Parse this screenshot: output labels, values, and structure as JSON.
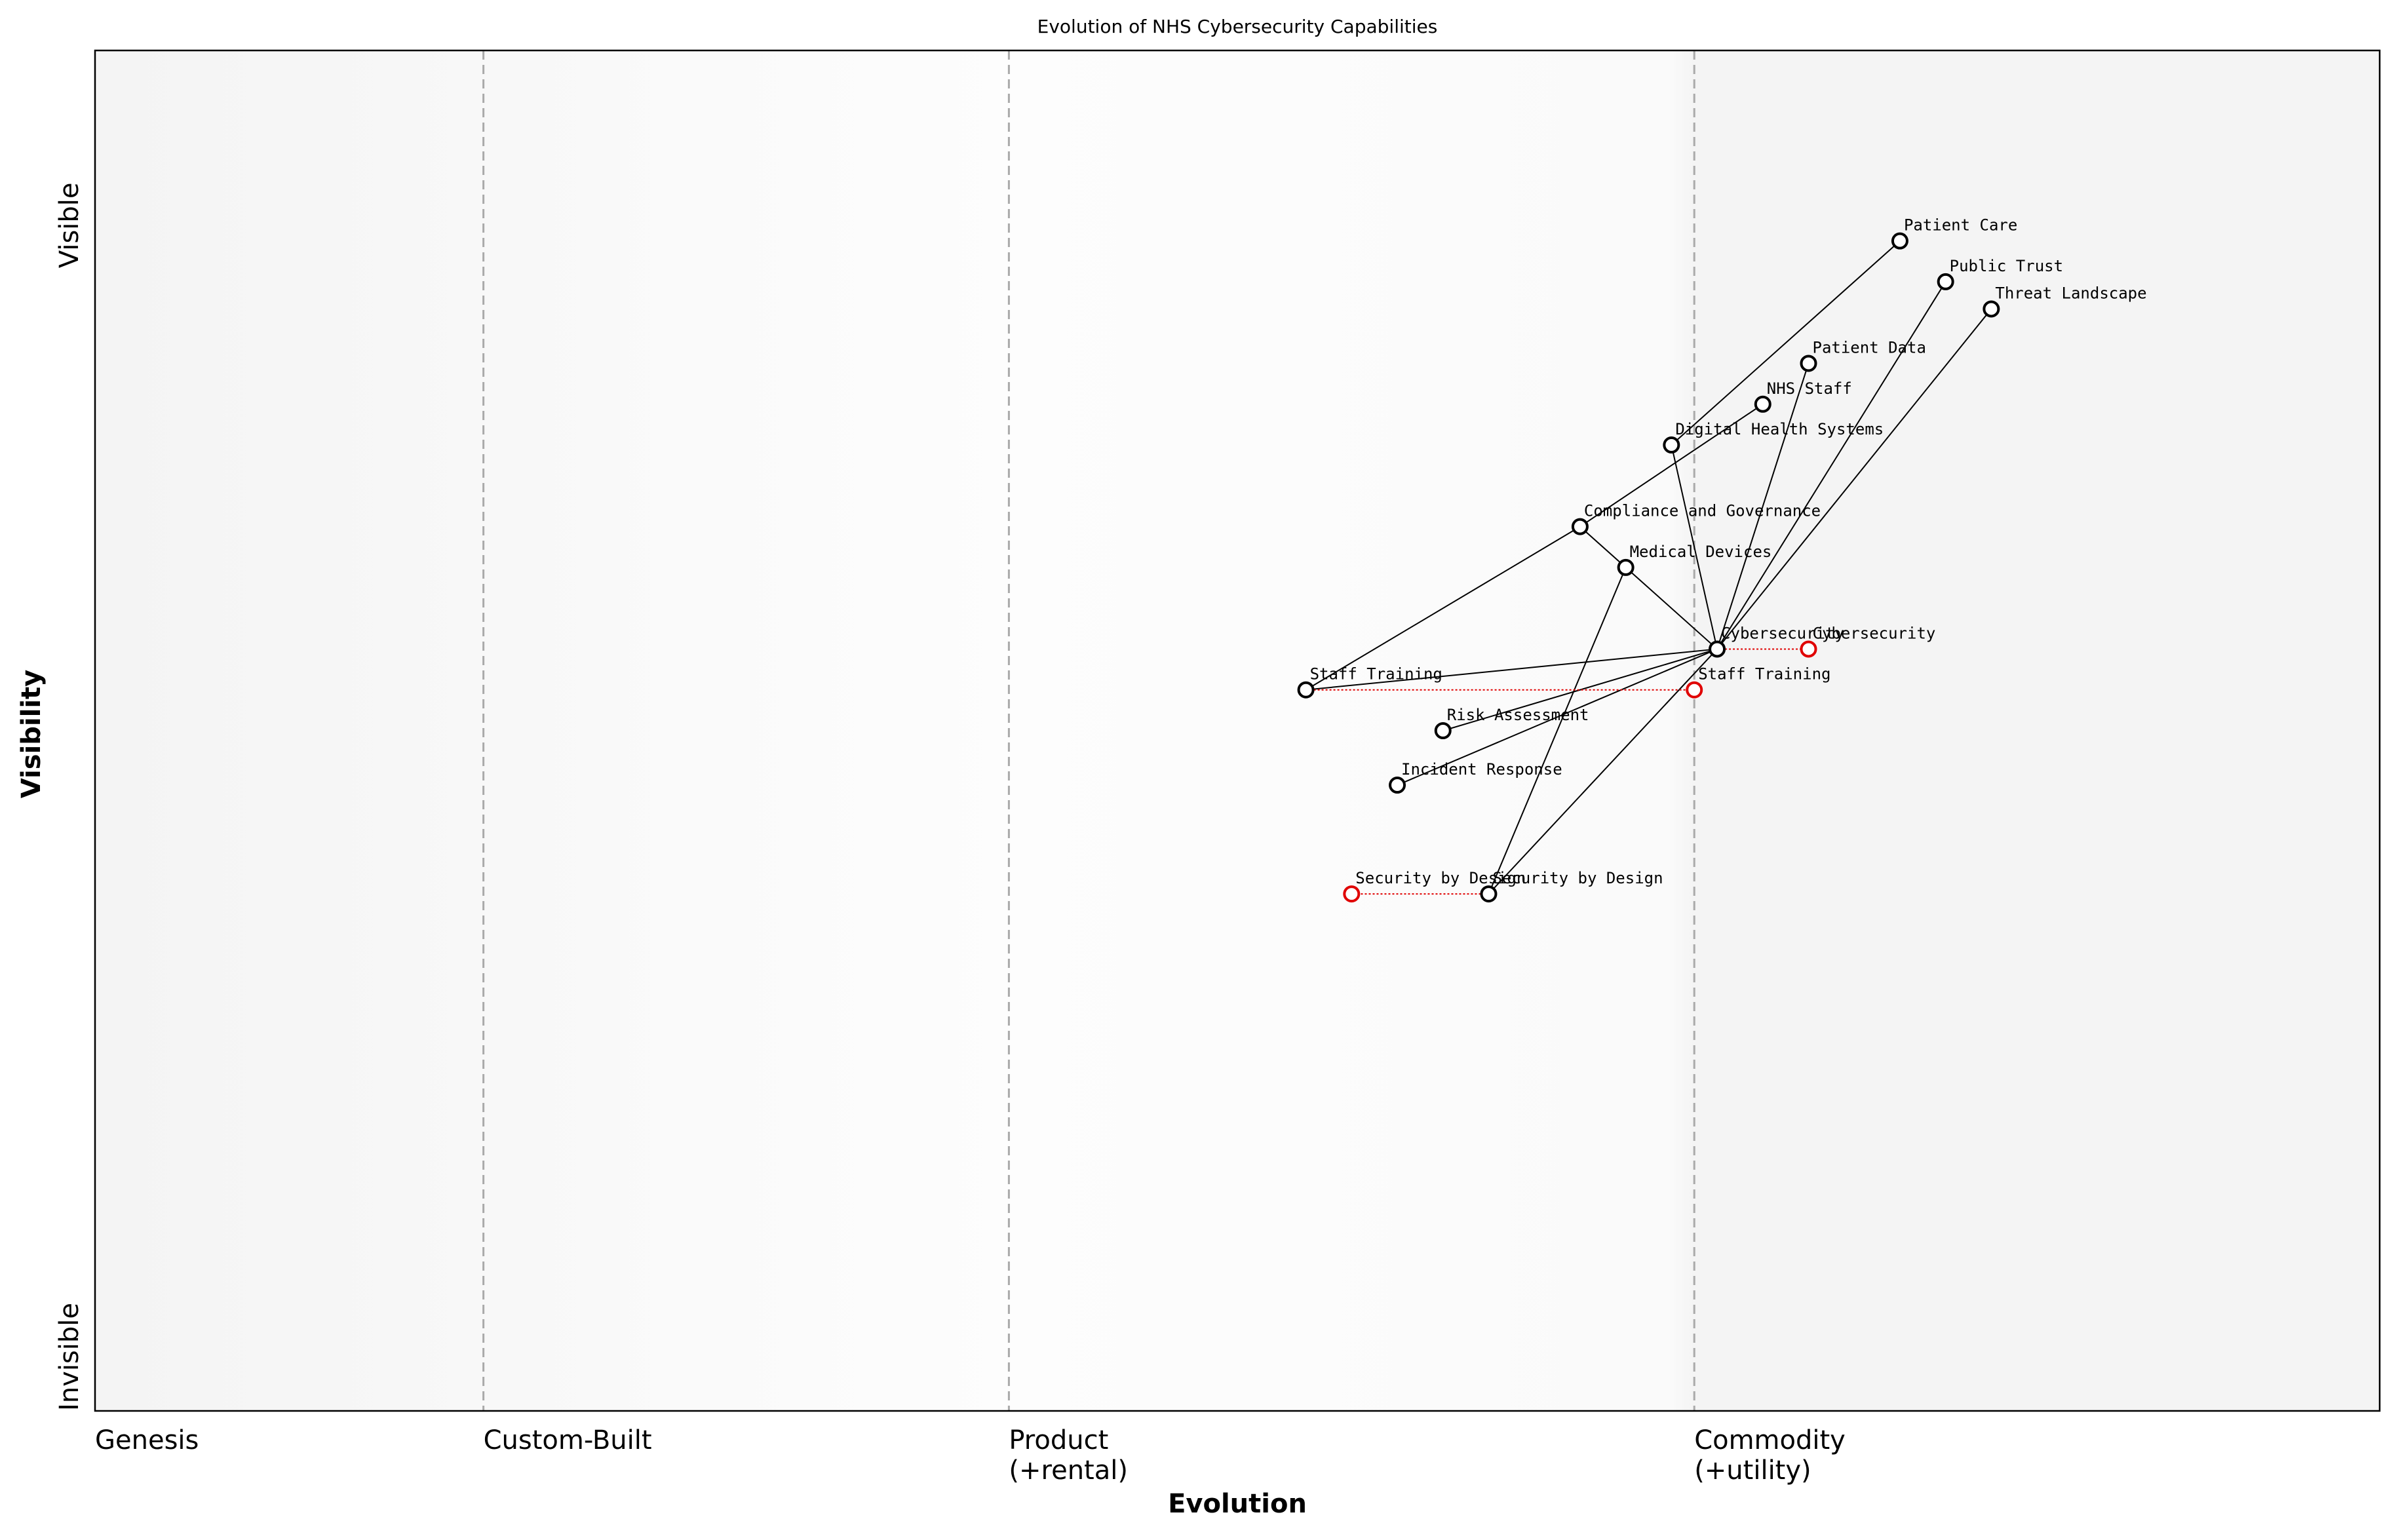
{
  "chart_data": {
    "type": "wardley",
    "title": "Evolution of NHS Cybersecurity Capabilities",
    "x_label": "Evolution",
    "y_label": "Visibility",
    "xlim": [
      0,
      1
    ],
    "ylim": [
      0,
      1
    ],
    "xticks": [
      {
        "value": 0,
        "label": "Genesis"
      },
      {
        "value": 0.17,
        "label": "Custom-Built"
      },
      {
        "value": 0.4,
        "label": "Product\n(+rental)"
      },
      {
        "value": 0.7,
        "label": "Commodity\n(+utility)"
      }
    ],
    "yticks": [
      {
        "value": 0,
        "label": "Invisible"
      },
      {
        "value": 0.84,
        "label": "Visible"
      }
    ],
    "components": [
      {
        "name": "Patient Care",
        "x": 0.79,
        "y": 0.86
      },
      {
        "name": "Public Trust",
        "x": 0.81,
        "y": 0.83
      },
      {
        "name": "Threat Landscape",
        "x": 0.83,
        "y": 0.81
      },
      {
        "name": "Patient Data",
        "x": 0.75,
        "y": 0.77
      },
      {
        "name": "NHS Staff",
        "x": 0.73,
        "y": 0.74
      },
      {
        "name": "Digital Health Systems",
        "x": 0.69,
        "y": 0.71
      },
      {
        "name": "Compliance and Governance",
        "x": 0.65,
        "y": 0.65
      },
      {
        "name": "Medical Devices",
        "x": 0.67,
        "y": 0.62
      },
      {
        "name": "Cybersecurity",
        "x": 0.71,
        "y": 0.56
      },
      {
        "name": "Staff Training",
        "x": 0.53,
        "y": 0.53
      },
      {
        "name": "Risk Assessment",
        "x": 0.59,
        "y": 0.5
      },
      {
        "name": "Incident Response",
        "x": 0.57,
        "y": 0.46
      },
      {
        "name": "Security by Design",
        "x": 0.61,
        "y": 0.38
      }
    ],
    "links": [
      [
        "Patient Care",
        "Digital Health Systems"
      ],
      [
        "Public Trust",
        "Cybersecurity"
      ],
      [
        "Threat Landscape",
        "Cybersecurity"
      ],
      [
        "Patient Data",
        "Cybersecurity"
      ],
      [
        "NHS Staff",
        "Compliance and Governance"
      ],
      [
        "Digital Health Systems",
        "Cybersecurity"
      ],
      [
        "Compliance and Governance",
        "Cybersecurity"
      ],
      [
        "Compliance and Governance",
        "Staff Training"
      ],
      [
        "Medical Devices",
        "Security by Design"
      ],
      [
        "Cybersecurity",
        "Staff Training"
      ],
      [
        "Cybersecurity",
        "Risk Assessment"
      ],
      [
        "Cybersecurity",
        "Incident Response"
      ],
      [
        "Cybersecurity",
        "Security by Design"
      ]
    ],
    "evolve": [
      {
        "name": "Cybersecurity",
        "x": 0.75
      },
      {
        "name": "Staff Training",
        "x": 0.7
      },
      {
        "name": "Security by Design",
        "x": 0.55
      }
    ],
    "color": "#000000",
    "evolve_color": "#e00000"
  }
}
